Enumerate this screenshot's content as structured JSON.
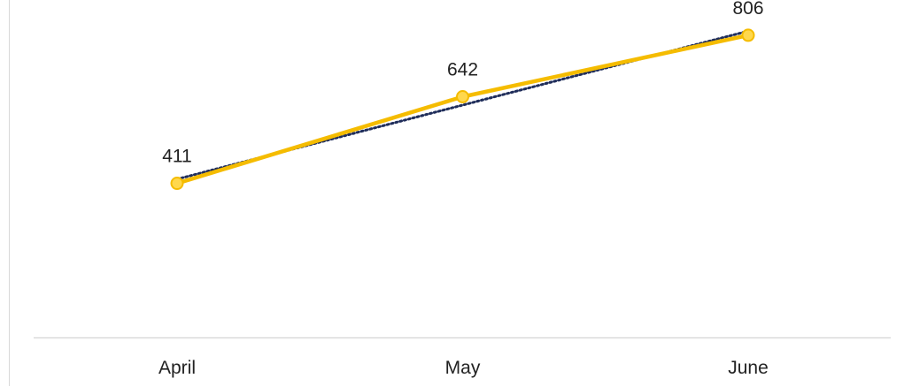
{
  "chart_data": {
    "type": "line",
    "categories": [
      "April",
      "May",
      "June"
    ],
    "series": [
      {
        "values": [
          411,
          642,
          806
        ],
        "color": "#F5BC00",
        "marker": "circle",
        "data_labels": [
          "411",
          "642",
          "806"
        ]
      }
    ],
    "trendline": {
      "style": "dotted",
      "color": "#1F2D5A",
      "type": "linear"
    },
    "title": "",
    "xlabel": "",
    "ylabel": "",
    "ylim": [
      0,
      900
    ],
    "grid": false,
    "legend": "none"
  }
}
